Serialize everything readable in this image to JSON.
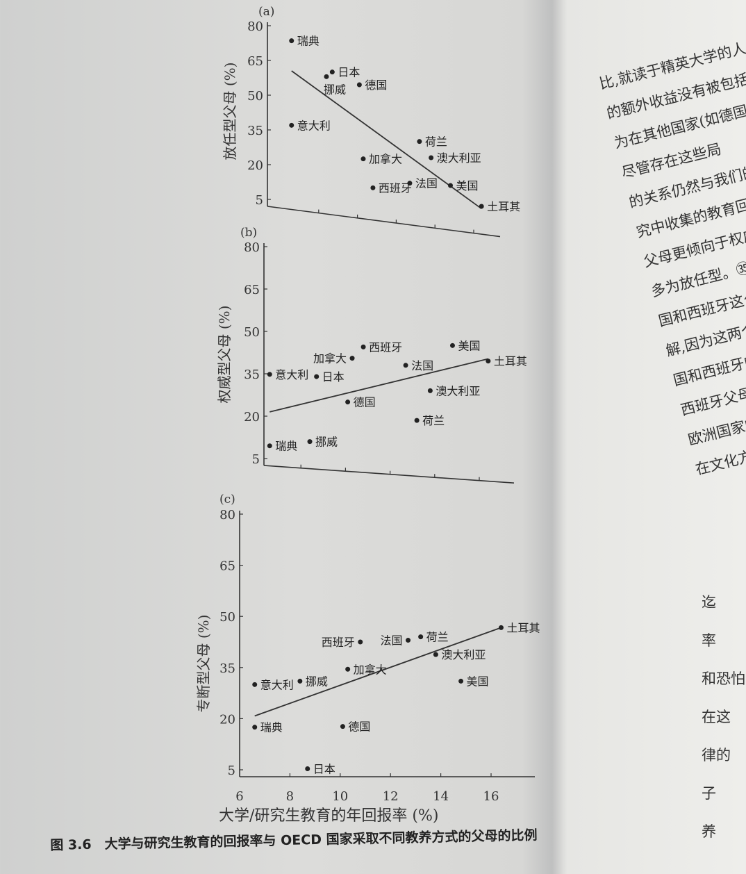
{
  "caption": "图 3.6　大学与研究生教育的回报率与 OECD 国家采取不同教养方式的父母的比例",
  "right_page": {
    "lines_top": [
      "比,就读于精英大学的人",
      "的额外收益没有被包括",
      "为在其他国家(如德国",
      "尽管存在这些局",
      "的关系仍然与我们的",
      "究中收集的教育回",
      "父母更倾向于权威",
      "多为放任型。㉟有",
      "国和西班牙这么",
      "解,因为这两个",
      "国和西班牙的",
      "西班牙父母比",
      "欧洲国家的",
      "在文化方面"
    ],
    "lines_bottom": [
      "迄",
      "率",
      "和恐怕",
      "在这",
      "律的",
      "子",
      "养"
    ]
  },
  "chart_data": [
    {
      "panel": "(a)",
      "type": "scatter",
      "ylabel": "放任型父母 (%)",
      "xlim": [
        6,
        17
      ],
      "ylim": [
        5,
        80
      ],
      "yticks": [
        5,
        20,
        35,
        50,
        65,
        80
      ],
      "points": [
        {
          "label": "瑞典",
          "x": 6.6,
          "y": 73.5
        },
        {
          "label": "日本",
          "x": 8.7,
          "y": 60
        },
        {
          "label": "挪威",
          "x": 8.4,
          "y": 58
        },
        {
          "label": "德国",
          "x": 10.1,
          "y": 54.5
        },
        {
          "label": "意大利",
          "x": 6.6,
          "y": 37
        },
        {
          "label": "加拿大",
          "x": 10.3,
          "y": 22.5
        },
        {
          "label": "西班牙",
          "x": 10.8,
          "y": 10
        },
        {
          "label": "法国",
          "x": 12.7,
          "y": 12
        },
        {
          "label": "荷兰",
          "x": 13.2,
          "y": 30
        },
        {
          "label": "澳大利亚",
          "x": 13.8,
          "y": 23
        },
        {
          "label": "美国",
          "x": 14.8,
          "y": 11
        },
        {
          "label": "土耳其",
          "x": 16.4,
          "y": 2
        }
      ],
      "trend": [
        [
          6.6,
          60.5
        ],
        [
          16.4,
          1
        ]
      ]
    },
    {
      "panel": "(b)",
      "type": "scatter",
      "ylabel": "权威型父母 (%)",
      "xlim": [
        6,
        17
      ],
      "ylim": [
        5,
        80
      ],
      "yticks": [
        5,
        20,
        35,
        50,
        65,
        80
      ],
      "points": [
        {
          "label": "瑞典",
          "x": 6.6,
          "y": 9.5
        },
        {
          "label": "挪威",
          "x": 8.4,
          "y": 11
        },
        {
          "label": "意大利",
          "x": 6.6,
          "y": 34.8
        },
        {
          "label": "日本",
          "x": 8.7,
          "y": 34
        },
        {
          "label": "德国",
          "x": 10.1,
          "y": 25
        },
        {
          "label": "加拿大",
          "x": 10.3,
          "y": 40.5
        },
        {
          "label": "西班牙",
          "x": 10.8,
          "y": 44.5
        },
        {
          "label": "法国",
          "x": 12.7,
          "y": 38
        },
        {
          "label": "荷兰",
          "x": 13.2,
          "y": 18.5
        },
        {
          "label": "澳大利亚",
          "x": 13.8,
          "y": 29
        },
        {
          "label": "美国",
          "x": 14.8,
          "y": 45
        },
        {
          "label": "土耳其",
          "x": 16.4,
          "y": 39.5
        }
      ],
      "trend": [
        [
          6.6,
          21.5
        ],
        [
          16.4,
          40.3
        ]
      ]
    },
    {
      "panel": "(c)",
      "type": "scatter",
      "ylabel": "专断型父母 (%)",
      "xlabel": "大学/研究生教育的年回报率 (%)",
      "xlim": [
        6,
        17
      ],
      "ylim": [
        5,
        80
      ],
      "xticks": [
        6,
        8,
        10,
        12,
        14,
        16
      ],
      "yticks": [
        5,
        20,
        35,
        50,
        65,
        80
      ],
      "points": [
        {
          "label": "瑞典",
          "x": 6.6,
          "y": 17.5
        },
        {
          "label": "意大利",
          "x": 6.6,
          "y": 30
        },
        {
          "label": "挪威",
          "x": 8.4,
          "y": 31
        },
        {
          "label": "日本",
          "x": 8.7,
          "y": 5.3
        },
        {
          "label": "德国",
          "x": 10.1,
          "y": 17.7
        },
        {
          "label": "加拿大",
          "x": 10.3,
          "y": 34.5
        },
        {
          "label": "西班牙",
          "x": 10.8,
          "y": 42.5
        },
        {
          "label": "法国",
          "x": 12.7,
          "y": 43
        },
        {
          "label": "荷兰",
          "x": 13.2,
          "y": 44
        },
        {
          "label": "澳大利亚",
          "x": 13.8,
          "y": 38.8
        },
        {
          "label": "美国",
          "x": 14.8,
          "y": 31
        },
        {
          "label": "土耳其",
          "x": 16.4,
          "y": 46.7
        }
      ],
      "trend": [
        [
          6.6,
          20.8
        ],
        [
          16.4,
          46.7
        ]
      ]
    }
  ]
}
